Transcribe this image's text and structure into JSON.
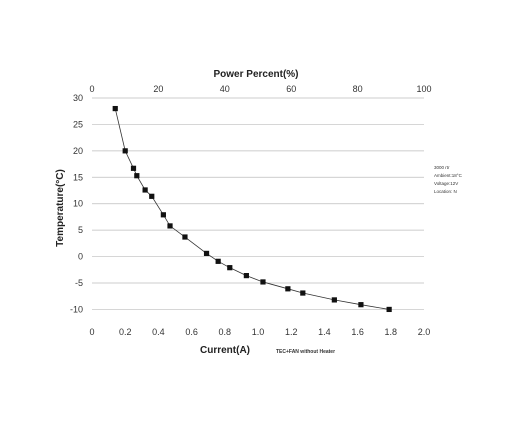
{
  "chart_data": {
    "type": "scatter",
    "title": "",
    "top_axis": {
      "label": "Power Percent(%)",
      "range": [
        0,
        100
      ],
      "ticks": [
        "0",
        "20",
        "40",
        "60",
        "80",
        "100"
      ]
    },
    "xlabel": "Current(A)",
    "xlabel_note": "TEC+FAN without Heater",
    "ylabel": "Temperature(°C)",
    "xlim": [
      0.0,
      2.0
    ],
    "ylim": [
      -12,
      30
    ],
    "x_ticks": [
      "0",
      "0.2",
      "0.4",
      "0.6",
      "0.8",
      "1.0",
      "1.2",
      "1.4",
      "1.6",
      "1.8",
      "2.0"
    ],
    "y_ticks": [
      "30",
      "25",
      "20",
      "15",
      "10",
      "5",
      "0",
      "-5",
      "-10"
    ],
    "grid": "horizontal",
    "annotations": [
      "3000 rtr",
      "Ambient:18°C",
      "Voltage:12V",
      "Location: N"
    ],
    "series": [
      {
        "marker": "square",
        "color": "#111111",
        "x": [
          0.14,
          0.2,
          0.25,
          0.27,
          0.32,
          0.36,
          0.43,
          0.47,
          0.56,
          0.69,
          0.76,
          0.83,
          0.93,
          1.03,
          1.18,
          1.27,
          1.46,
          1.62,
          1.79
        ],
        "y": [
          28,
          20,
          16.7,
          15.3,
          12.6,
          11.4,
          7.9,
          5.8,
          3.7,
          0.6,
          -0.9,
          -2.1,
          -3.6,
          -4.8,
          -6.1,
          -6.9,
          -8.2,
          -9.1,
          -10.0
        ]
      }
    ]
  }
}
